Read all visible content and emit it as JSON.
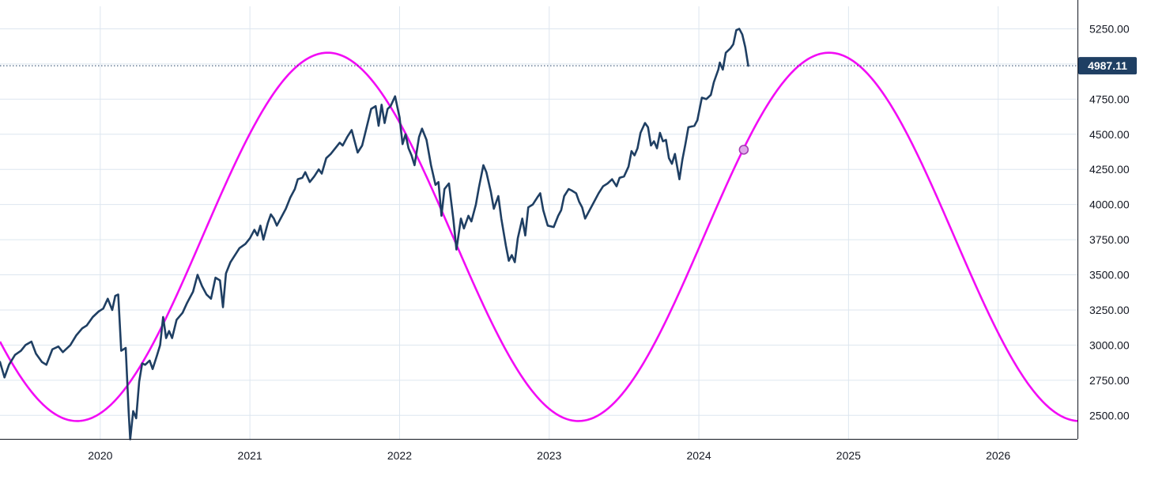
{
  "chart_data": {
    "type": "line",
    "title": "",
    "xlabel": "",
    "ylabel": "",
    "x_ticks": [
      "2020",
      "2021",
      "2022",
      "2023",
      "2024",
      "2025",
      "2026"
    ],
    "x_range": [
      2019.33,
      2026.53
    ],
    "y_ticks": [
      "2500.00",
      "2750.00",
      "3000.00",
      "3250.00",
      "3500.00",
      "3750.00",
      "4000.00",
      "4250.00",
      "4500.00",
      "4750.00",
      "5000.00",
      "5250.00"
    ],
    "ylim": [
      2333,
      5410
    ],
    "grid": true,
    "legend": "none",
    "last_value_label": "4987.11",
    "series": [
      {
        "style": "price",
        "color": "#1f3f63",
        "points": [
          [
            2019.33,
            2880
          ],
          [
            2019.36,
            2770
          ],
          [
            2019.39,
            2860
          ],
          [
            2019.43,
            2930
          ],
          [
            2019.47,
            2960
          ],
          [
            2019.5,
            3000
          ],
          [
            2019.54,
            3025
          ],
          [
            2019.57,
            2940
          ],
          [
            2019.61,
            2880
          ],
          [
            2019.64,
            2860
          ],
          [
            2019.68,
            2970
          ],
          [
            2019.72,
            2990
          ],
          [
            2019.75,
            2950
          ],
          [
            2019.8,
            3000
          ],
          [
            2019.84,
            3070
          ],
          [
            2019.88,
            3120
          ],
          [
            2019.91,
            3140
          ],
          [
            2019.95,
            3200
          ],
          [
            2019.99,
            3240
          ],
          [
            2020.02,
            3260
          ],
          [
            2020.05,
            3330
          ],
          [
            2020.08,
            3250
          ],
          [
            2020.1,
            3350
          ],
          [
            2020.12,
            3360
          ],
          [
            2020.14,
            2960
          ],
          [
            2020.17,
            2980
          ],
          [
            2020.19,
            2520
          ],
          [
            2020.2,
            2330
          ],
          [
            2020.22,
            2530
          ],
          [
            2020.24,
            2480
          ],
          [
            2020.26,
            2740
          ],
          [
            2020.28,
            2870
          ],
          [
            2020.3,
            2860
          ],
          [
            2020.33,
            2890
          ],
          [
            2020.35,
            2830
          ],
          [
            2020.38,
            2930
          ],
          [
            2020.4,
            3000
          ],
          [
            2020.42,
            3200
          ],
          [
            2020.44,
            3050
          ],
          [
            2020.46,
            3100
          ],
          [
            2020.48,
            3050
          ],
          [
            2020.51,
            3180
          ],
          [
            2020.55,
            3230
          ],
          [
            2020.58,
            3300
          ],
          [
            2020.62,
            3380
          ],
          [
            2020.65,
            3500
          ],
          [
            2020.68,
            3420
          ],
          [
            2020.71,
            3360
          ],
          [
            2020.74,
            3330
          ],
          [
            2020.77,
            3480
          ],
          [
            2020.8,
            3460
          ],
          [
            2020.82,
            3270
          ],
          [
            2020.84,
            3510
          ],
          [
            2020.87,
            3590
          ],
          [
            2020.9,
            3640
          ],
          [
            2020.93,
            3690
          ],
          [
            2020.97,
            3720
          ],
          [
            2021.0,
            3760
          ],
          [
            2021.03,
            3820
          ],
          [
            2021.05,
            3780
          ],
          [
            2021.07,
            3850
          ],
          [
            2021.09,
            3750
          ],
          [
            2021.12,
            3870
          ],
          [
            2021.14,
            3930
          ],
          [
            2021.16,
            3900
          ],
          [
            2021.18,
            3850
          ],
          [
            2021.21,
            3910
          ],
          [
            2021.24,
            3970
          ],
          [
            2021.27,
            4050
          ],
          [
            2021.3,
            4110
          ],
          [
            2021.32,
            4180
          ],
          [
            2021.35,
            4190
          ],
          [
            2021.37,
            4230
          ],
          [
            2021.4,
            4160
          ],
          [
            2021.43,
            4200
          ],
          [
            2021.46,
            4250
          ],
          [
            2021.48,
            4220
          ],
          [
            2021.51,
            4330
          ],
          [
            2021.54,
            4360
          ],
          [
            2021.57,
            4400
          ],
          [
            2021.6,
            4440
          ],
          [
            2021.62,
            4420
          ],
          [
            2021.65,
            4480
          ],
          [
            2021.68,
            4530
          ],
          [
            2021.7,
            4450
          ],
          [
            2021.72,
            4370
          ],
          [
            2021.75,
            4420
          ],
          [
            2021.78,
            4550
          ],
          [
            2021.81,
            4680
          ],
          [
            2021.84,
            4700
          ],
          [
            2021.86,
            4560
          ],
          [
            2021.88,
            4710
          ],
          [
            2021.9,
            4580
          ],
          [
            2021.92,
            4680
          ],
          [
            2021.94,
            4700
          ],
          [
            2021.97,
            4770
          ],
          [
            2022.0,
            4620
          ],
          [
            2022.02,
            4430
          ],
          [
            2022.04,
            4500
          ],
          [
            2022.06,
            4400
          ],
          [
            2022.08,
            4350
          ],
          [
            2022.1,
            4280
          ],
          [
            2022.13,
            4480
          ],
          [
            2022.15,
            4540
          ],
          [
            2022.18,
            4460
          ],
          [
            2022.21,
            4280
          ],
          [
            2022.24,
            4140
          ],
          [
            2022.26,
            4160
          ],
          [
            2022.28,
            3920
          ],
          [
            2022.3,
            4110
          ],
          [
            2022.33,
            4150
          ],
          [
            2022.36,
            3890
          ],
          [
            2022.38,
            3680
          ],
          [
            2022.41,
            3900
          ],
          [
            2022.43,
            3830
          ],
          [
            2022.46,
            3920
          ],
          [
            2022.48,
            3880
          ],
          [
            2022.51,
            4000
          ],
          [
            2022.53,
            4120
          ],
          [
            2022.56,
            4280
          ],
          [
            2022.58,
            4230
          ],
          [
            2022.61,
            4090
          ],
          [
            2022.63,
            3970
          ],
          [
            2022.66,
            4060
          ],
          [
            2022.68,
            3900
          ],
          [
            2022.71,
            3710
          ],
          [
            2022.73,
            3600
          ],
          [
            2022.75,
            3640
          ],
          [
            2022.77,
            3590
          ],
          [
            2022.79,
            3760
          ],
          [
            2022.82,
            3900
          ],
          [
            2022.84,
            3780
          ],
          [
            2022.86,
            3980
          ],
          [
            2022.89,
            4000
          ],
          [
            2022.92,
            4050
          ],
          [
            2022.94,
            4080
          ],
          [
            2022.96,
            3960
          ],
          [
            2022.99,
            3850
          ],
          [
            2023.03,
            3840
          ],
          [
            2023.06,
            3920
          ],
          [
            2023.08,
            3960
          ],
          [
            2023.1,
            4060
          ],
          [
            2023.13,
            4110
          ],
          [
            2023.15,
            4100
          ],
          [
            2023.18,
            4080
          ],
          [
            2023.2,
            4020
          ],
          [
            2023.22,
            3980
          ],
          [
            2023.24,
            3900
          ],
          [
            2023.27,
            3960
          ],
          [
            2023.3,
            4020
          ],
          [
            2023.33,
            4080
          ],
          [
            2023.36,
            4130
          ],
          [
            2023.39,
            4150
          ],
          [
            2023.42,
            4180
          ],
          [
            2023.45,
            4130
          ],
          [
            2023.47,
            4190
          ],
          [
            2023.5,
            4200
          ],
          [
            2023.53,
            4270
          ],
          [
            2023.55,
            4380
          ],
          [
            2023.57,
            4350
          ],
          [
            2023.59,
            4400
          ],
          [
            2023.61,
            4510
          ],
          [
            2023.64,
            4580
          ],
          [
            2023.66,
            4550
          ],
          [
            2023.68,
            4420
          ],
          [
            2023.7,
            4450
          ],
          [
            2023.72,
            4400
          ],
          [
            2023.74,
            4510
          ],
          [
            2023.76,
            4450
          ],
          [
            2023.78,
            4460
          ],
          [
            2023.8,
            4330
          ],
          [
            2023.82,
            4290
          ],
          [
            2023.84,
            4360
          ],
          [
            2023.86,
            4240
          ],
          [
            2023.87,
            4180
          ],
          [
            2023.89,
            4320
          ],
          [
            2023.91,
            4430
          ],
          [
            2023.93,
            4550
          ],
          [
            2023.97,
            4560
          ],
          [
            2023.99,
            4600
          ],
          [
            2024.02,
            4760
          ],
          [
            2024.05,
            4750
          ],
          [
            2024.08,
            4780
          ],
          [
            2024.1,
            4870
          ],
          [
            2024.13,
            4960
          ],
          [
            2024.14,
            5010
          ],
          [
            2024.16,
            4960
          ],
          [
            2024.18,
            5080
          ],
          [
            2024.21,
            5110
          ],
          [
            2024.23,
            5140
          ],
          [
            2024.25,
            5240
          ],
          [
            2024.27,
            5250
          ],
          [
            2024.29,
            5210
          ],
          [
            2024.31,
            5120
          ],
          [
            2024.33,
            4987.11
          ]
        ]
      },
      {
        "style": "cycle",
        "color": "#f20cf5",
        "function": "sine",
        "period_years": 3.35,
        "peak_x": 2021.52,
        "peak_y": 5080,
        "trough_y": 2460,
        "x_range": [
          2019.33,
          2026.53
        ],
        "marker": {
          "x": 2024.3,
          "y": 4390
        }
      }
    ]
  }
}
